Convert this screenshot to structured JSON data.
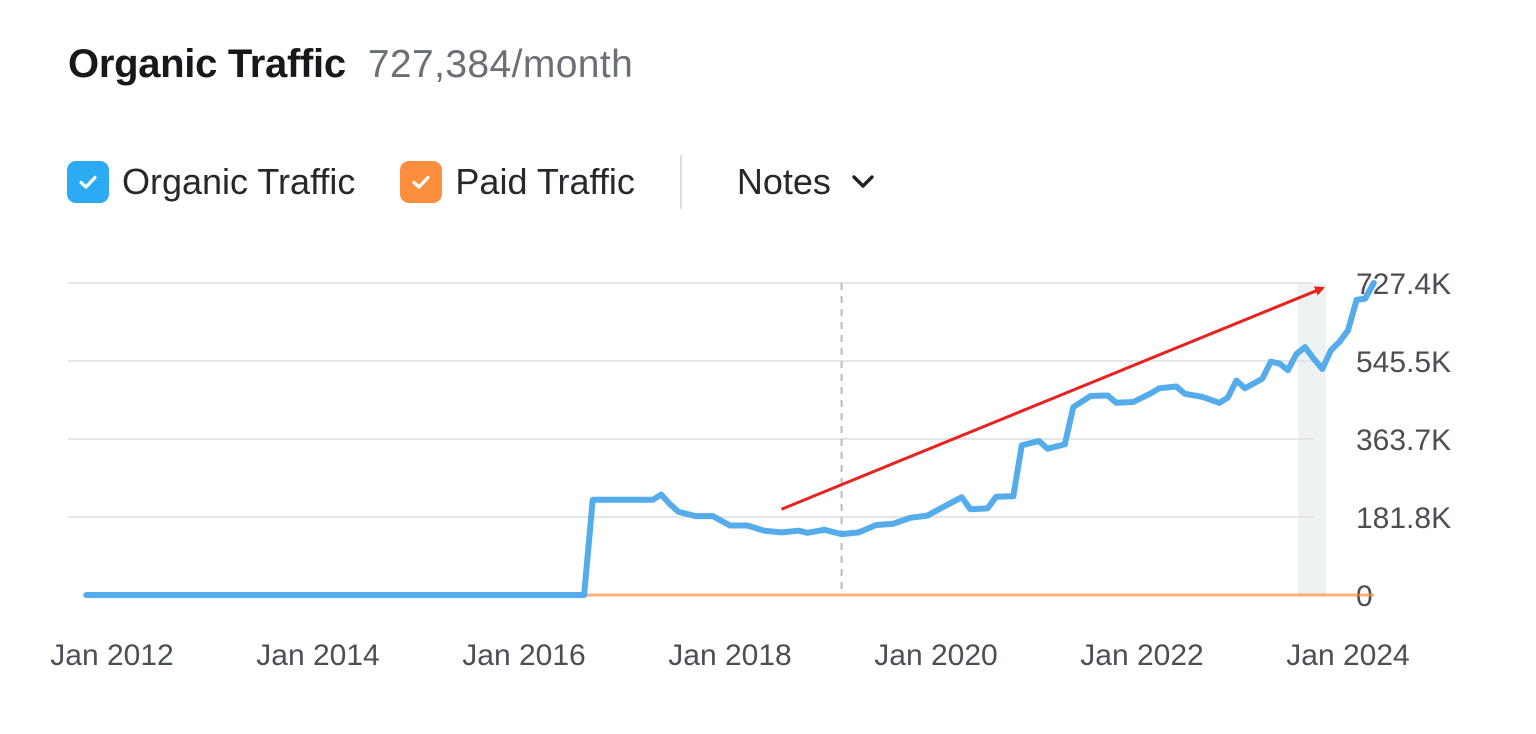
{
  "header": {
    "title": "Organic Traffic",
    "value": "727,384/month"
  },
  "legend": {
    "items": [
      {
        "label": "Organic Traffic",
        "color": "#2cabf4",
        "checked": true,
        "icon": "checkbox-checked-icon"
      },
      {
        "label": "Paid Traffic",
        "color": "#fb8f3e",
        "checked": true,
        "icon": "checkbox-checked-icon"
      }
    ],
    "notes_label": "Notes",
    "notes_icon": "chevron-down-icon"
  },
  "chart_data": {
    "type": "line",
    "title": "",
    "xlabel": "",
    "ylabel": "",
    "ylim": [
      0,
      727400
    ],
    "y_ticks": [
      {
        "value": 0,
        "label": "0"
      },
      {
        "value": 181800,
        "label": "181.8K"
      },
      {
        "value": 363700,
        "label": "363.7K"
      },
      {
        "value": 545500,
        "label": "545.5K"
      },
      {
        "value": 727400,
        "label": "727.4K"
      }
    ],
    "x_ticks": [
      "Jan 2012",
      "Jan 2014",
      "Jan 2016",
      "Jan 2018",
      "Jan 2020",
      "Jan 2022",
      "Jan 2024"
    ],
    "xlim": [
      "2011-10",
      "2024-01"
    ],
    "grid": true,
    "legend_position": "top-left",
    "y_axis_position": "right",
    "vertical_marker": "2019-02",
    "series": [
      {
        "name": "Organic Traffic",
        "color": "#55acea",
        "points": [
          [
            "2011-10",
            0
          ],
          [
            "2016-08",
            0
          ],
          [
            "2016-09",
            222000
          ],
          [
            "2017-04",
            222000
          ],
          [
            "2017-05",
            234000
          ],
          [
            "2017-06",
            212000
          ],
          [
            "2017-07",
            194000
          ],
          [
            "2017-09",
            184000
          ],
          [
            "2017-11",
            184000
          ],
          [
            "2018-01",
            162000
          ],
          [
            "2018-03",
            162000
          ],
          [
            "2018-05",
            150000
          ],
          [
            "2018-07",
            146000
          ],
          [
            "2018-09",
            150000
          ],
          [
            "2018-10",
            145000
          ],
          [
            "2018-12",
            152000
          ],
          [
            "2019-02",
            142000
          ],
          [
            "2019-04",
            146000
          ],
          [
            "2019-06",
            163000
          ],
          [
            "2019-08",
            166000
          ],
          [
            "2019-10",
            180000
          ],
          [
            "2019-12",
            185000
          ],
          [
            "2020-02",
            207000
          ],
          [
            "2020-04",
            228000
          ],
          [
            "2020-05",
            200000
          ],
          [
            "2020-07",
            202000
          ],
          [
            "2020-08",
            229000
          ],
          [
            "2020-10",
            230000
          ],
          [
            "2020-11",
            349000
          ],
          [
            "2021-01",
            359000
          ],
          [
            "2021-02",
            341000
          ],
          [
            "2021-04",
            351000
          ],
          [
            "2021-05",
            438000
          ],
          [
            "2021-07",
            464000
          ],
          [
            "2021-09",
            465000
          ],
          [
            "2021-10",
            448000
          ],
          [
            "2021-12",
            450000
          ],
          [
            "2022-02",
            470000
          ],
          [
            "2022-03",
            482000
          ],
          [
            "2022-05",
            486000
          ],
          [
            "2022-06",
            469000
          ],
          [
            "2022-08",
            462000
          ],
          [
            "2022-10",
            448000
          ],
          [
            "2022-11",
            460000
          ],
          [
            "2022-12",
            500000
          ],
          [
            "2023-01",
            482000
          ],
          [
            "2023-03",
            504000
          ],
          [
            "2023-04",
            544000
          ],
          [
            "2023-05",
            540000
          ],
          [
            "2023-06",
            524000
          ],
          [
            "2023-07",
            562000
          ],
          [
            "2023-08",
            578000
          ],
          [
            "2023-09",
            551000
          ],
          [
            "2023-10",
            527000
          ],
          [
            "2023-11",
            570000
          ],
          [
            "2023-12",
            590000
          ],
          [
            "2024-01",
            617000
          ],
          [
            "2024-02",
            688000
          ],
          [
            "2024-03",
            691000
          ],
          [
            "2024-04",
            727400
          ]
        ]
      },
      {
        "name": "Paid Traffic",
        "color": "#fb8f3e",
        "points": [
          [
            "2011-10",
            0
          ],
          [
            "2024-04",
            0
          ]
        ]
      }
    ],
    "annotations": [
      {
        "type": "trend-arrow",
        "color": "#e8221f",
        "from": [
          "2018-07",
          200000
        ],
        "to": [
          "2023-10",
          715000
        ]
      }
    ]
  }
}
